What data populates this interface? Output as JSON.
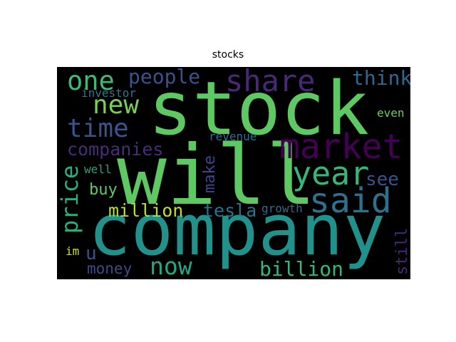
{
  "title": "stocks",
  "words": [
    {
      "text": "stock",
      "color": "#5ec962"
    },
    {
      "text": "will",
      "color": "#5ec962"
    },
    {
      "text": "company",
      "color": "#21918c"
    },
    {
      "text": "market",
      "color": "#440154"
    },
    {
      "text": "said",
      "color": "#2c728e"
    },
    {
      "text": "year",
      "color": "#35b779"
    },
    {
      "text": "share",
      "color": "#482878"
    },
    {
      "text": "one",
      "color": "#3cbb75"
    },
    {
      "text": "new",
      "color": "#7ad151"
    },
    {
      "text": "time",
      "color": "#3b528b"
    },
    {
      "text": "people",
      "color": "#3b528b"
    },
    {
      "text": "think",
      "color": "#31688e"
    },
    {
      "text": "companies",
      "color": "#472d7b"
    },
    {
      "text": "price",
      "color": "#29af7f"
    },
    {
      "text": "million",
      "color": "#bddf26"
    },
    {
      "text": "tesla",
      "color": "#2c728e"
    },
    {
      "text": "billion",
      "color": "#35b779"
    },
    {
      "text": "now",
      "color": "#22a884"
    },
    {
      "text": "money",
      "color": "#3e4a89"
    },
    {
      "text": "buy",
      "color": "#5ec962"
    },
    {
      "text": "make",
      "color": "#414487"
    },
    {
      "text": "see",
      "color": "#3b528b"
    },
    {
      "text": "still",
      "color": "#482878"
    },
    {
      "text": "investor",
      "color": "#2a788e"
    },
    {
      "text": "revenue",
      "color": "#2c728e"
    },
    {
      "text": "growth",
      "color": "#31688e"
    },
    {
      "text": "well",
      "color": "#21a585"
    },
    {
      "text": "even",
      "color": "#6ece58"
    },
    {
      "text": "u",
      "color": "#3b528b"
    },
    {
      "text": "im",
      "color": "#c8e020"
    }
  ]
}
